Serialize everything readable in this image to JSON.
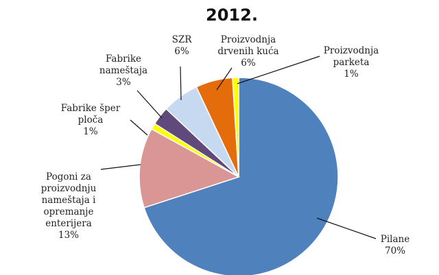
{
  "chart_data": {
    "type": "pie",
    "title": "2012.",
    "slices": [
      {
        "label": "Pilane",
        "value": 70,
        "value_label": "70%",
        "color": "#4F81BD"
      },
      {
        "label": "Pogoni za proizvodnju nameštaja i opremanje enterijera",
        "value": 13,
        "value_label": "13%",
        "color": "#D99694"
      },
      {
        "label": "Fabrike šper ploča",
        "value": 1,
        "value_label": "1%",
        "color": "#FFFF00"
      },
      {
        "label": "Fabrike nameštaja",
        "value": 3,
        "value_label": "3%",
        "color": "#604A7B"
      },
      {
        "label": "SZR",
        "value": 6,
        "value_label": "6%",
        "color": "#C6D9F1"
      },
      {
        "label": "Proizvodnja drvenih kuća",
        "value": 6,
        "value_label": "6%",
        "color": "#E46C0A"
      },
      {
        "label": "Proizvodnja parketa",
        "value": 1,
        "value_label": "1%",
        "color": "#FFFF00"
      }
    ]
  }
}
